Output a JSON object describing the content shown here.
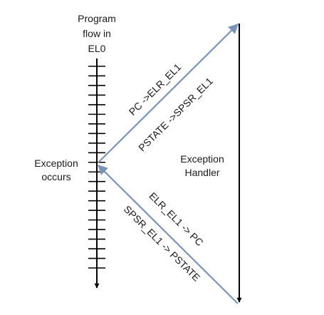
{
  "diagram": {
    "title_lines": [
      "Program",
      "flow in",
      "EL0"
    ],
    "exception_occurs_lines": [
      "Exception",
      "occurs"
    ],
    "handler_lines": [
      "Exception",
      "Handler"
    ],
    "entry_labels": [
      "PC ->ELR_EL1",
      "PSTATE ->SPSR_EL1"
    ],
    "return_labels": [
      "ELR_EL1 -> PC",
      "SPSR_EL1 -> PSTATE"
    ],
    "tick_count": 22,
    "colors": {
      "timeline": "#000000",
      "arrow_blue": "#7b93b8",
      "text": "#1a1a1a"
    }
  }
}
